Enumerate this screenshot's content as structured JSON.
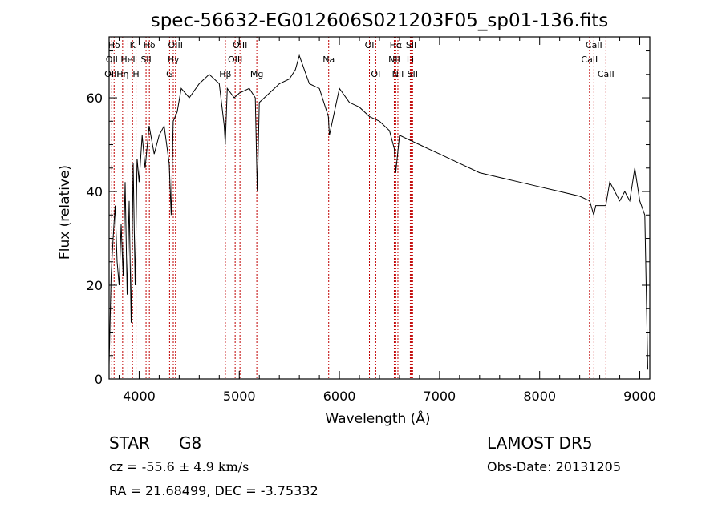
{
  "chart_data": {
    "type": "line",
    "title": "spec-56632-EG012606S021203F05_sp01-136.fits",
    "xlabel": "Wavelength (Å)",
    "ylabel": "Flux (relative)",
    "xlim": [
      3700,
      9100
    ],
    "ylim": [
      0,
      73
    ],
    "x_ticks": [
      4000,
      5000,
      6000,
      7000,
      8000,
      9000
    ],
    "y_ticks": [
      0,
      20,
      40,
      60
    ],
    "grid": false,
    "line_color": "#000000",
    "marker_color": "#c00000",
    "spectral_lines": [
      {
        "label": "Hδ",
        "x": 3750,
        "row": 0
      },
      {
        "label": "OII",
        "x": 3727,
        "row": 1
      },
      {
        "label": "OIII",
        "x": 3727,
        "row": 2
      },
      {
        "label": "K",
        "x": 3934,
        "row": 0
      },
      {
        "label": "HeI",
        "x": 3888,
        "row": 1
      },
      {
        "label": "Hη",
        "x": 3835,
        "row": 2
      },
      {
        "label": "H",
        "x": 3969,
        "row": 2
      },
      {
        "label": "Hδ",
        "x": 4102,
        "row": 0
      },
      {
        "label": "SII",
        "x": 4069,
        "row": 1
      },
      {
        "label": "OIII",
        "x": 4363,
        "row": 0
      },
      {
        "label": "Hγ",
        "x": 4341,
        "row": 1
      },
      {
        "label": "G",
        "x": 4304,
        "row": 2
      },
      {
        "label": "Hβ",
        "x": 4861,
        "row": 2
      },
      {
        "label": "OIII",
        "x": 5007,
        "row": 0
      },
      {
        "label": "OIII",
        "x": 4959,
        "row": 1
      },
      {
        "label": "Mg",
        "x": 5175,
        "row": 2
      },
      {
        "label": "Na",
        "x": 5893,
        "row": 1
      },
      {
        "label": "OI",
        "x": 6300,
        "row": 0
      },
      {
        "label": "OI",
        "x": 6363,
        "row": 2
      },
      {
        "label": "Hα",
        "x": 6563,
        "row": 0
      },
      {
        "label": "NII",
        "x": 6548,
        "row": 1
      },
      {
        "label": "NII",
        "x": 6584,
        "row": 2
      },
      {
        "label": "SII",
        "x": 6717,
        "row": 0
      },
      {
        "label": "Li",
        "x": 6708,
        "row": 1
      },
      {
        "label": "SII",
        "x": 6731,
        "row": 2
      },
      {
        "label": "CaII",
        "x": 8542,
        "row": 0
      },
      {
        "label": "CaII",
        "x": 8498,
        "row": 1
      },
      {
        "label": "CaII",
        "x": 8662,
        "row": 2
      }
    ],
    "series": [
      {
        "x": [
          3700,
          3720,
          3740,
          3760,
          3780,
          3800,
          3820,
          3840,
          3860,
          3880,
          3900,
          3920,
          3940,
          3960,
          3980,
          4000,
          4030,
          4060,
          4100,
          4150,
          4200,
          4250,
          4300,
          4320,
          4340,
          4380,
          4420,
          4500,
          4600,
          4700,
          4800,
          4850,
          4860,
          4880,
          4950,
          5000,
          5100,
          5160,
          5180,
          5200,
          5300,
          5400,
          5500,
          5560,
          5600,
          5700,
          5800,
          5890,
          5900,
          6000,
          6100,
          6200,
          6300,
          6400,
          6500,
          6550,
          6563,
          6600,
          6700,
          6800,
          6900,
          7000,
          7200,
          7400,
          7600,
          7800,
          8000,
          8200,
          8400,
          8500,
          8540,
          8560,
          8660,
          8700,
          8800,
          8850,
          8900,
          8950,
          9000,
          9050,
          9080
        ],
        "y": [
          3,
          22,
          30,
          37,
          25,
          20,
          33,
          22,
          42,
          18,
          38,
          12,
          46,
          20,
          47,
          42,
          52,
          45,
          54,
          48,
          52,
          54,
          46,
          35,
          55,
          57,
          62,
          60,
          63,
          65,
          63,
          54,
          50,
          62,
          60,
          61,
          62,
          60,
          40,
          59,
          61,
          63,
          64,
          66,
          69,
          63,
          62,
          56,
          52,
          62,
          59,
          58,
          56,
          55,
          53,
          49,
          44,
          52,
          51,
          50,
          49,
          48,
          46,
          44,
          43,
          42,
          41,
          40,
          39,
          38,
          35,
          37,
          37,
          42,
          38,
          40,
          38,
          45,
          38,
          35,
          2
        ]
      }
    ]
  },
  "info": {
    "object_type": "STAR",
    "subclass": "G8",
    "survey": "LAMOST DR5",
    "cz_label": "cz = ",
    "cz_value": "-55.6 ± 4.9 km/s",
    "obs_date": "Obs-Date: 20131205",
    "coords": "RA =  21.68499, DEC =  -3.75332"
  }
}
